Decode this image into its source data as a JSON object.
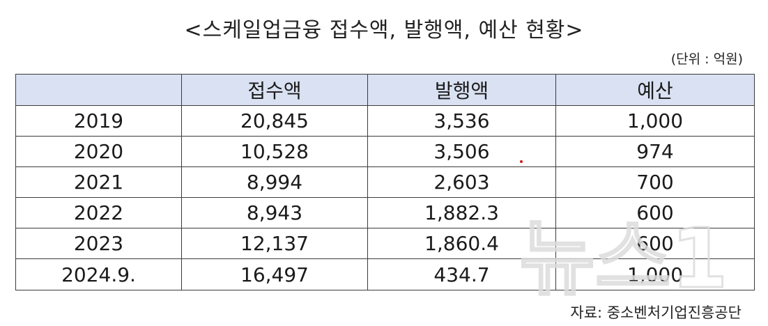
{
  "chart_data": {
    "type": "table",
    "title": "<스케일업금융 접수액, 발행액, 예산 현황>",
    "unit": "(단위 : 억원)",
    "columns": [
      "",
      "접수액",
      "발행액",
      "예산"
    ],
    "rows": [
      {
        "label": "2019",
        "cells": [
          "20,845",
          "3,536",
          "1,000"
        ]
      },
      {
        "label": "2020",
        "cells": [
          "10,528",
          "3,506",
          "974"
        ]
      },
      {
        "label": "2021",
        "cells": [
          "8,994",
          "2,603",
          "700"
        ]
      },
      {
        "label": "2022",
        "cells": [
          "8,943",
          "1,882.3",
          "600"
        ]
      },
      {
        "label": "2023",
        "cells": [
          "12,137",
          "1,860.4",
          "600"
        ]
      },
      {
        "label": "2024.9.",
        "cells": [
          "16,497",
          "434.7",
          "1,000"
        ]
      }
    ],
    "source": "자료: 중소벤처기업진흥공단"
  },
  "colors": {
    "header_bg": "#d9e1f2",
    "border": "#3a3a3a",
    "watermark": "#e6e6e6"
  },
  "watermark_text": "뉴스1"
}
